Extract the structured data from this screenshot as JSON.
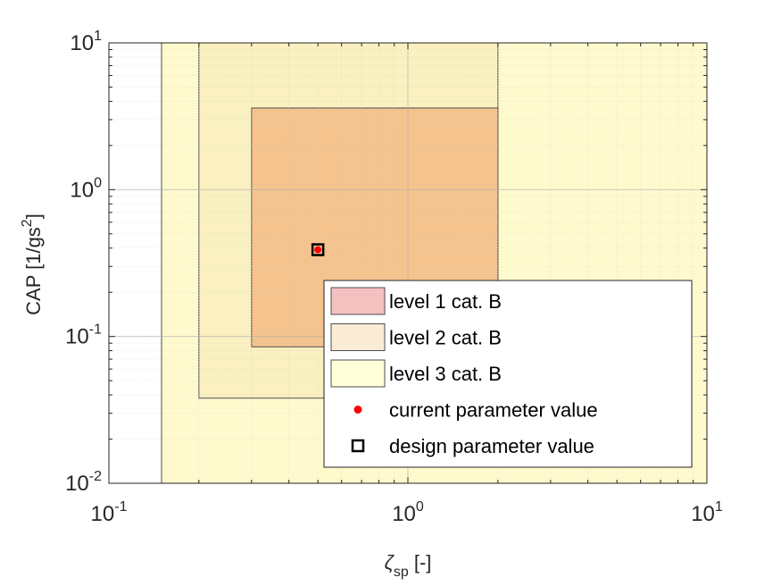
{
  "chart_data": {
    "type": "area",
    "xlabel": {
      "symbol": "ζ",
      "subscript": "sp",
      "suffix": " [-]"
    },
    "ylabel": {
      "text": "CAP [1/gs",
      "superscript": "2",
      "suffix": "]"
    },
    "xscale": "log",
    "yscale": "log",
    "xlim": [
      0.1,
      10
    ],
    "ylim": [
      0.01,
      10
    ],
    "x_ticks": [
      {
        "base": "10",
        "exp": "-1",
        "value": 0.1
      },
      {
        "base": "10",
        "exp": "0",
        "value": 1
      },
      {
        "base": "10",
        "exp": "1",
        "value": 10
      }
    ],
    "y_ticks": [
      {
        "base": "10",
        "exp": "-2",
        "value": 0.01
      },
      {
        "base": "10",
        "exp": "-1",
        "value": 0.1
      },
      {
        "base": "10",
        "exp": "0",
        "value": 1
      },
      {
        "base": "10",
        "exp": "1",
        "value": 10
      }
    ],
    "grid": true,
    "regions": [
      {
        "name": "level 3 cat. B",
        "x_range": [
          0.15,
          10
        ],
        "y_range": [
          0.01,
          10
        ],
        "color": "#FFFACD",
        "legend_color": "#FFFFD9"
      },
      {
        "name": "level 2 cat. B",
        "x_range": [
          0.2,
          2.0
        ],
        "y_range": [
          0.038,
          10
        ],
        "color": "#FAF0C0",
        "legend_color": "#FAEBD7"
      },
      {
        "name": "level 1 cat. B",
        "x_range": [
          0.3,
          2.0
        ],
        "y_range": [
          0.085,
          3.6
        ],
        "color": "#F4C38E",
        "legend_color": "#F5C0C0"
      }
    ],
    "points": [
      {
        "name": "design parameter value",
        "x": 0.5,
        "y": 0.39,
        "marker": "square",
        "color": "#000000"
      },
      {
        "name": "current parameter value",
        "x": 0.5,
        "y": 0.39,
        "marker": "dot",
        "color": "#FF0000"
      }
    ],
    "legend": {
      "placement": "lower-right",
      "entries": [
        {
          "label": "level 1 cat. B",
          "kind": "patch",
          "color": "#F5C0C0"
        },
        {
          "label": "level 2 cat. B",
          "kind": "patch",
          "color": "#FAEBD7"
        },
        {
          "label": "level 3 cat. B",
          "kind": "patch",
          "color": "#FFFFD9"
        },
        {
          "label": "current parameter value",
          "kind": "dot",
          "color": "#FF0000"
        },
        {
          "label": "design parameter value",
          "kind": "square",
          "color": "#000000"
        }
      ]
    }
  }
}
